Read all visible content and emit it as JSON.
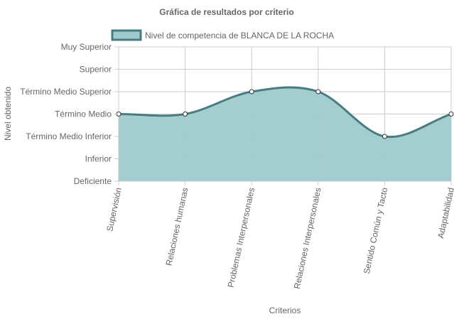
{
  "chart_data": {
    "type": "area",
    "title": "Gráfica de resultados por criterio",
    "xlabel": "Criterios",
    "ylabel": "Nivel obtenido",
    "categories": [
      "Supervisión",
      "Relaciones humanas",
      "Problemas Interpersonales",
      "Relaciones Interpersonales",
      "Sentido Común y Tacto",
      "Adaptabilidad"
    ],
    "y_levels": [
      "Deficiente",
      "Inferior",
      "Término Medio Inferior",
      "Término Medio",
      "Término Medio Superior",
      "Superior",
      "Muy Superior"
    ],
    "ylim": [
      0,
      6
    ],
    "series": [
      {
        "name": "Nivel de competencia de BLANCA DE LA ROCHA",
        "values": [
          3,
          3,
          4,
          4,
          2,
          3
        ]
      }
    ],
    "legend_position": "top",
    "grid": true,
    "colors": {
      "fill": "#9fcacd",
      "line": "#4a7b80",
      "grid": "#cccccc",
      "point_fill": "#ffffff",
      "point_stroke": "#333333"
    }
  }
}
